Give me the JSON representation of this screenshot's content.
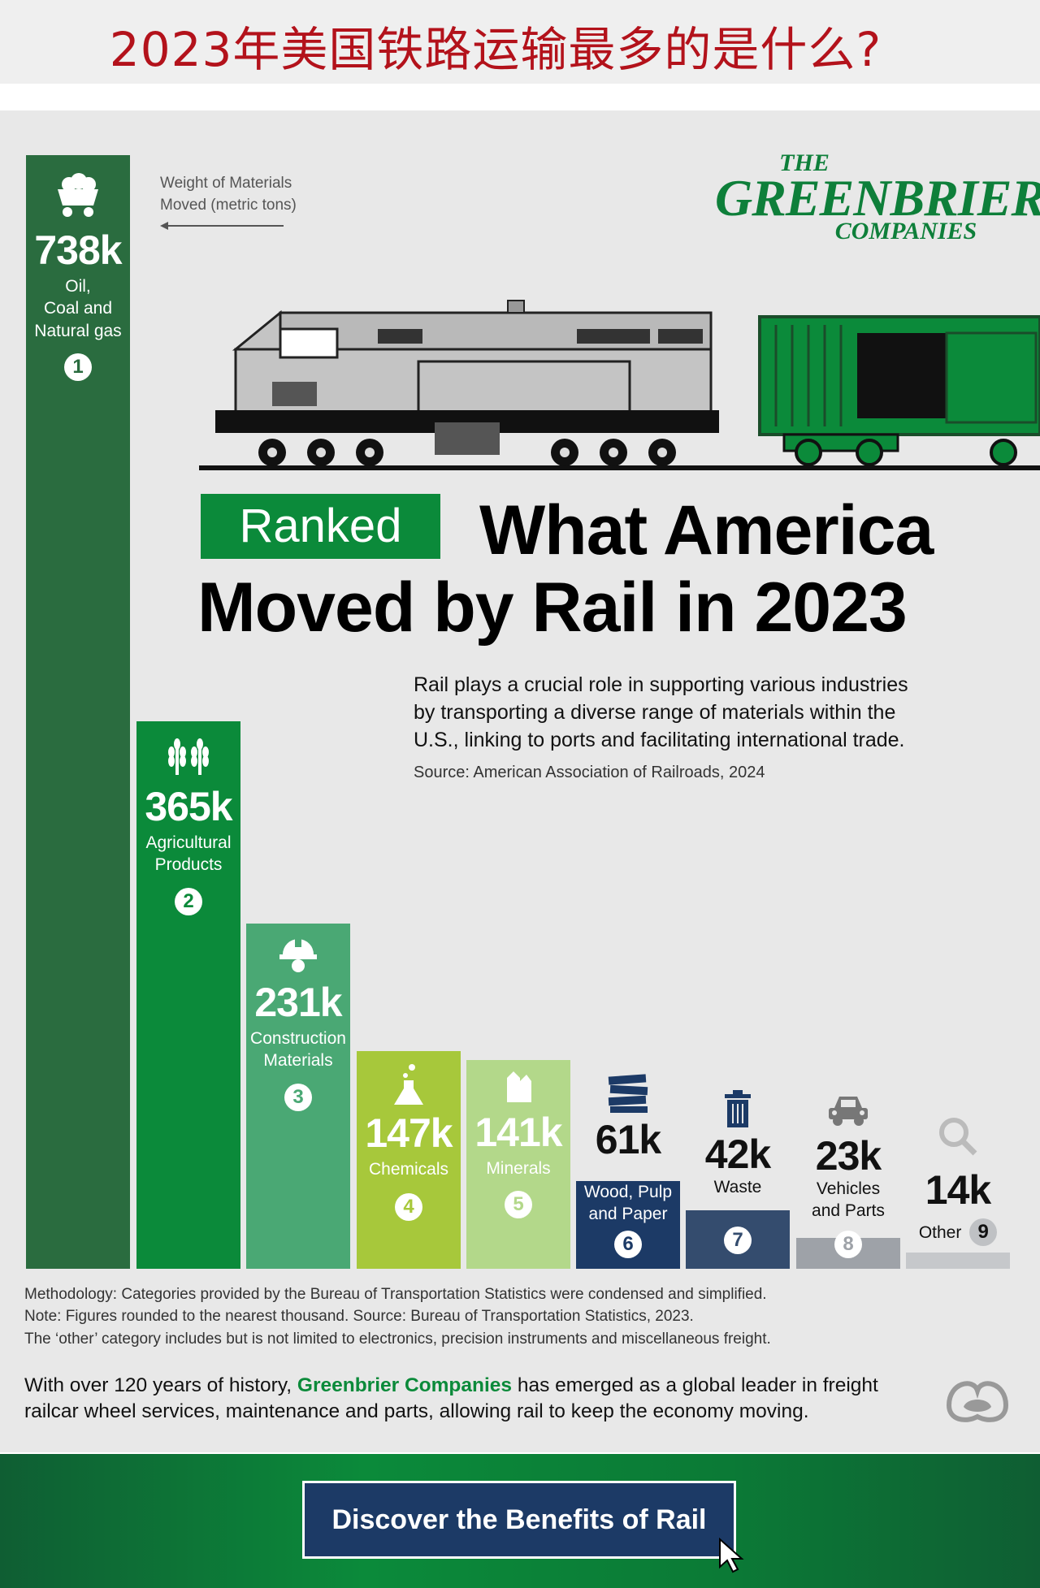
{
  "page": {
    "top_title": "2023年美国铁路运输最多的是什么?",
    "legend_note_line1": "Weight of Materials",
    "legend_note_line2": "Moved (metric tons)",
    "logo": {
      "line1": "THE",
      "line2": "GREENBRIER",
      "line3": "COMPANIES"
    },
    "ranked": "Ranked",
    "headline_line1": "What America",
    "headline_line2": "Moved by Rail in 2023",
    "intro_line1": "Rail plays a crucial role in supporting various industries",
    "intro_line2": "by transporting a diverse range of materials within the",
    "intro_line3": "U.S., linking to ports and facilitating international trade.",
    "source": "Source: American Association of Railroads, 2024",
    "note1": "Methodology: Categories provided by the Bureau of Transportation Statistics were condensed and simplified.",
    "note2": "Note: Figures rounded to the nearest thousand. Source: Bureau of Transportation Statistics, 2023.",
    "note3": "The ‘other’ category includes but is not limited to electronics, precision instruments and miscellaneous freight.",
    "footer_pre": "With over 120 years of history,",
    "footer_brand": "Greenbrier Companies",
    "footer_post": "has emerged as a global leader in freight",
    "footer_line2": "railcar wheel services, maintenance and parts, allowing rail to keep the economy moving.",
    "cta": "Discover the Benefits of Rail"
  },
  "colors": {
    "dark_green": "#2a6c3f",
    "green": "#0b8a3a",
    "mid_green": "#4aa874",
    "lime": "#a7c83b",
    "light_green": "#b3d88a",
    "navy": "#1c3a66",
    "slate": "#344c6e",
    "gray": "#9ea2a8",
    "light_gray": "#c6c8cb",
    "title_red": "#b3121b"
  },
  "chart_data": {
    "type": "bar",
    "ylabel": "Weight of Materials Moved (metric tons)",
    "categories": [
      "Oil, Coal and Natural gas",
      "Agricultural Products",
      "Construction Materials",
      "Chemicals",
      "Minerals",
      "Wood, Pulp and Paper",
      "Waste",
      "Vehicles and Parts",
      "Other"
    ],
    "values": [
      738000,
      365000,
      231000,
      147000,
      141000,
      61000,
      42000,
      23000,
      14000
    ],
    "bars": [
      {
        "rank": "1",
        "value_label": "738k",
        "label_lines": [
          "Oil,",
          "Coal and",
          "Natural gas"
        ],
        "icon": "coal-cart-icon",
        "color": "#2a6c3f"
      },
      {
        "rank": "2",
        "value_label": "365k",
        "label_lines": [
          "Agricultural",
          "Products"
        ],
        "icon": "wheat-icon",
        "color": "#0b8a3a"
      },
      {
        "rank": "3",
        "value_label": "231k",
        "label_lines": [
          "Construction",
          "Materials"
        ],
        "icon": "hardhat-icon",
        "color": "#4aa874"
      },
      {
        "rank": "4",
        "value_label": "147k",
        "label_lines": [
          "Chemicals"
        ],
        "icon": "flask-icon",
        "color": "#a7c83b"
      },
      {
        "rank": "5",
        "value_label": "141k",
        "label_lines": [
          "Minerals"
        ],
        "icon": "crystal-icon",
        "color": "#b3d88a"
      },
      {
        "rank": "6",
        "value_label": "61k",
        "label_lines": [
          "Wood, Pulp",
          "and Paper"
        ],
        "icon": "paper-stack-icon",
        "color": "#1c3a66"
      },
      {
        "rank": "7",
        "value_label": "42k",
        "label_lines": [
          "Waste"
        ],
        "icon": "trash-can-icon",
        "color": "#344c6e"
      },
      {
        "rank": "8",
        "value_label": "23k",
        "label_lines": [
          "Vehicles",
          "and Parts"
        ],
        "icon": "car-icon",
        "color": "#9ea2a8"
      },
      {
        "rank": "9",
        "value_label": "14k",
        "label_lines": [
          "Other"
        ],
        "icon": "magnifier-icon",
        "color": "#c6c8cb"
      }
    ]
  }
}
